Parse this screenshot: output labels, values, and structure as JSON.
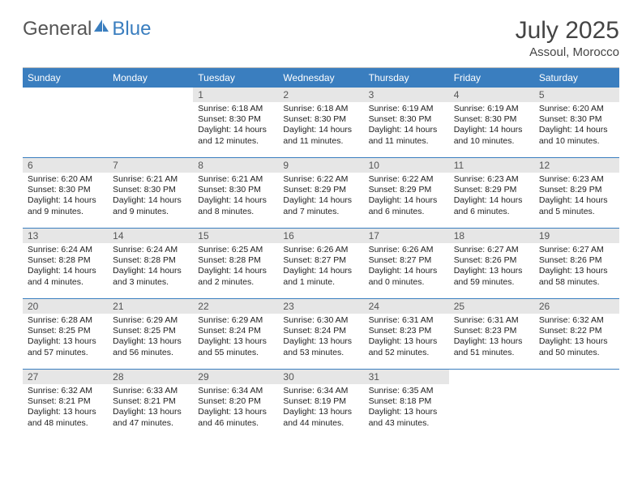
{
  "brand": {
    "part1": "General",
    "part2": "Blue"
  },
  "title": {
    "month": "July 2025",
    "location": "Assoul, Morocco"
  },
  "dayHeaders": [
    "Sunday",
    "Monday",
    "Tuesday",
    "Wednesday",
    "Thursday",
    "Friday",
    "Saturday"
  ],
  "colors": {
    "accent": "#3a7ebf",
    "dayStripe": "#e6e6e6",
    "text": "#222222",
    "headerText": "#ffffff"
  },
  "layout": {
    "startWeekday": 2,
    "daysInMonth": 31
  },
  "days": {
    "1": {
      "sunrise": "6:18 AM",
      "sunset": "8:30 PM",
      "daylight": "14 hours and 12 minutes."
    },
    "2": {
      "sunrise": "6:18 AM",
      "sunset": "8:30 PM",
      "daylight": "14 hours and 11 minutes."
    },
    "3": {
      "sunrise": "6:19 AM",
      "sunset": "8:30 PM",
      "daylight": "14 hours and 11 minutes."
    },
    "4": {
      "sunrise": "6:19 AM",
      "sunset": "8:30 PM",
      "daylight": "14 hours and 10 minutes."
    },
    "5": {
      "sunrise": "6:20 AM",
      "sunset": "8:30 PM",
      "daylight": "14 hours and 10 minutes."
    },
    "6": {
      "sunrise": "6:20 AM",
      "sunset": "8:30 PM",
      "daylight": "14 hours and 9 minutes."
    },
    "7": {
      "sunrise": "6:21 AM",
      "sunset": "8:30 PM",
      "daylight": "14 hours and 9 minutes."
    },
    "8": {
      "sunrise": "6:21 AM",
      "sunset": "8:30 PM",
      "daylight": "14 hours and 8 minutes."
    },
    "9": {
      "sunrise": "6:22 AM",
      "sunset": "8:29 PM",
      "daylight": "14 hours and 7 minutes."
    },
    "10": {
      "sunrise": "6:22 AM",
      "sunset": "8:29 PM",
      "daylight": "14 hours and 6 minutes."
    },
    "11": {
      "sunrise": "6:23 AM",
      "sunset": "8:29 PM",
      "daylight": "14 hours and 6 minutes."
    },
    "12": {
      "sunrise": "6:23 AM",
      "sunset": "8:29 PM",
      "daylight": "14 hours and 5 minutes."
    },
    "13": {
      "sunrise": "6:24 AM",
      "sunset": "8:28 PM",
      "daylight": "14 hours and 4 minutes."
    },
    "14": {
      "sunrise": "6:24 AM",
      "sunset": "8:28 PM",
      "daylight": "14 hours and 3 minutes."
    },
    "15": {
      "sunrise": "6:25 AM",
      "sunset": "8:28 PM",
      "daylight": "14 hours and 2 minutes."
    },
    "16": {
      "sunrise": "6:26 AM",
      "sunset": "8:27 PM",
      "daylight": "14 hours and 1 minute."
    },
    "17": {
      "sunrise": "6:26 AM",
      "sunset": "8:27 PM",
      "daylight": "14 hours and 0 minutes."
    },
    "18": {
      "sunrise": "6:27 AM",
      "sunset": "8:26 PM",
      "daylight": "13 hours and 59 minutes."
    },
    "19": {
      "sunrise": "6:27 AM",
      "sunset": "8:26 PM",
      "daylight": "13 hours and 58 minutes."
    },
    "20": {
      "sunrise": "6:28 AM",
      "sunset": "8:25 PM",
      "daylight": "13 hours and 57 minutes."
    },
    "21": {
      "sunrise": "6:29 AM",
      "sunset": "8:25 PM",
      "daylight": "13 hours and 56 minutes."
    },
    "22": {
      "sunrise": "6:29 AM",
      "sunset": "8:24 PM",
      "daylight": "13 hours and 55 minutes."
    },
    "23": {
      "sunrise": "6:30 AM",
      "sunset": "8:24 PM",
      "daylight": "13 hours and 53 minutes."
    },
    "24": {
      "sunrise": "6:31 AM",
      "sunset": "8:23 PM",
      "daylight": "13 hours and 52 minutes."
    },
    "25": {
      "sunrise": "6:31 AM",
      "sunset": "8:23 PM",
      "daylight": "13 hours and 51 minutes."
    },
    "26": {
      "sunrise": "6:32 AM",
      "sunset": "8:22 PM",
      "daylight": "13 hours and 50 minutes."
    },
    "27": {
      "sunrise": "6:32 AM",
      "sunset": "8:21 PM",
      "daylight": "13 hours and 48 minutes."
    },
    "28": {
      "sunrise": "6:33 AM",
      "sunset": "8:21 PM",
      "daylight": "13 hours and 47 minutes."
    },
    "29": {
      "sunrise": "6:34 AM",
      "sunset": "8:20 PM",
      "daylight": "13 hours and 46 minutes."
    },
    "30": {
      "sunrise": "6:34 AM",
      "sunset": "8:19 PM",
      "daylight": "13 hours and 44 minutes."
    },
    "31": {
      "sunrise": "6:35 AM",
      "sunset": "8:18 PM",
      "daylight": "13 hours and 43 minutes."
    }
  },
  "labels": {
    "sunrise": "Sunrise: ",
    "sunset": "Sunset: ",
    "daylight": "Daylight: "
  }
}
